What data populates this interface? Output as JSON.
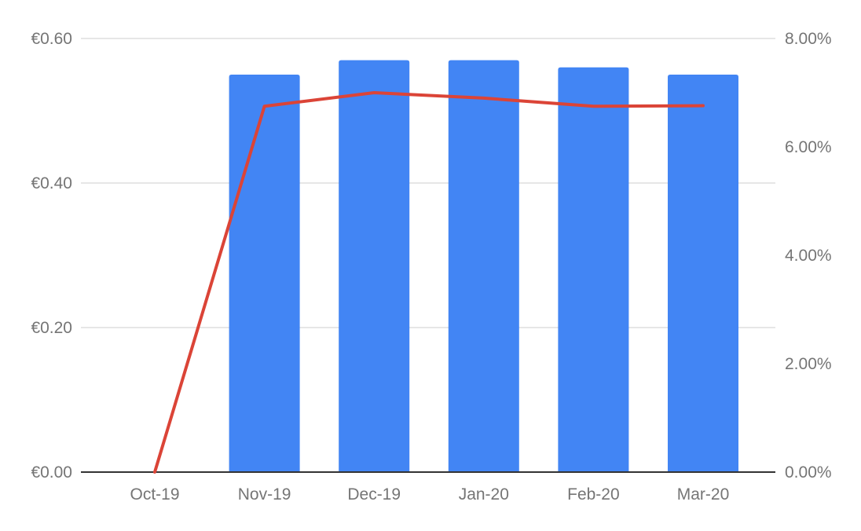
{
  "chart_data": {
    "type": "bar",
    "categories": [
      "Oct-19",
      "Nov-19",
      "Dec-19",
      "Jan-20",
      "Feb-20",
      "Mar-20"
    ],
    "series": [
      {
        "type": "bar",
        "axis": "left",
        "color": "#4285f4",
        "values": [
          0.0,
          0.55,
          0.57,
          0.57,
          0.56,
          0.55
        ]
      },
      {
        "type": "line",
        "axis": "right",
        "color": "#db4437",
        "values": [
          0.0,
          6.75,
          7.0,
          6.9,
          6.75,
          6.76
        ]
      }
    ],
    "y_left": {
      "min": 0,
      "max": 0.6,
      "ticks": [
        0,
        0.2,
        0.4,
        0.6
      ],
      "tick_labels": [
        "€0.00",
        "€0.20",
        "€0.40",
        "€0.60"
      ]
    },
    "y_right": {
      "min": 0,
      "max": 8,
      "ticks": [
        0,
        2,
        4,
        6,
        8
      ],
      "tick_labels": [
        "0.00%",
        "2.00%",
        "4.00%",
        "6.00%",
        "8.00%"
      ]
    },
    "grid": true,
    "legend": "none",
    "colors": {
      "grid": "#cccccc",
      "axis": "#333333",
      "text": "#757575"
    }
  }
}
